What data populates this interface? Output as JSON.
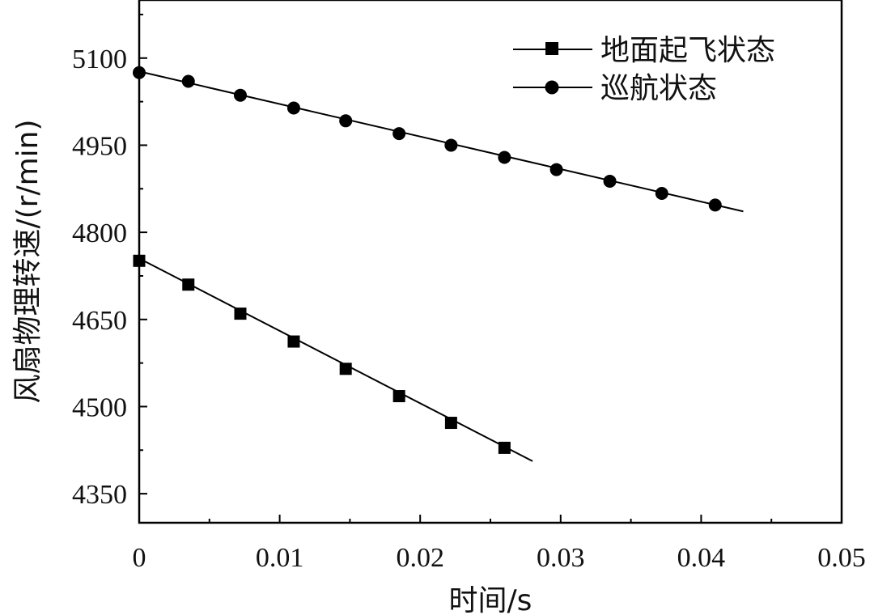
{
  "chart_data": {
    "type": "line",
    "xlabel": "时间/s",
    "ylabel": "风扇物理转速/(r/min)",
    "xlim": [
      0,
      0.05
    ],
    "ylim": [
      4300,
      5200
    ],
    "x_ticks": [
      0,
      0.01,
      0.02,
      0.03,
      0.04,
      0.05
    ],
    "x_tick_labels": [
      "0",
      "0.01",
      "0.02",
      "0.03",
      "0.04",
      "0.05"
    ],
    "y_ticks": [
      4350,
      4500,
      4650,
      4800,
      4950,
      5100
    ],
    "y_tick_labels": [
      "4350",
      "4500",
      "4650",
      "4800",
      "4950",
      "5100"
    ],
    "grid": false,
    "legend_position": "top-right",
    "series": [
      {
        "name": "地面起飞状态",
        "marker": "square",
        "color": "#000000",
        "points_x": [
          0,
          0.0035,
          0.0072,
          0.011,
          0.0147,
          0.0185,
          0.0222,
          0.026
        ],
        "points_y": [
          4751,
          4710,
          4660,
          4612,
          4565,
          4518,
          4472,
          4429
        ],
        "line_x": [
          0,
          0.028
        ],
        "line_y": [
          4755,
          4406
        ]
      },
      {
        "name": "巡航状态",
        "marker": "circle",
        "color": "#000000",
        "points_x": [
          0,
          0.0035,
          0.0072,
          0.011,
          0.0147,
          0.0185,
          0.0222,
          0.026,
          0.0297,
          0.0335,
          0.0372,
          0.041
        ],
        "points_y": [
          5075,
          5060,
          5036,
          5014,
          4992,
          4970,
          4950,
          4929,
          4908,
          4888,
          4867,
          4847
        ],
        "line_x": [
          0,
          0.043
        ],
        "line_y": [
          5077,
          4836
        ]
      }
    ]
  }
}
